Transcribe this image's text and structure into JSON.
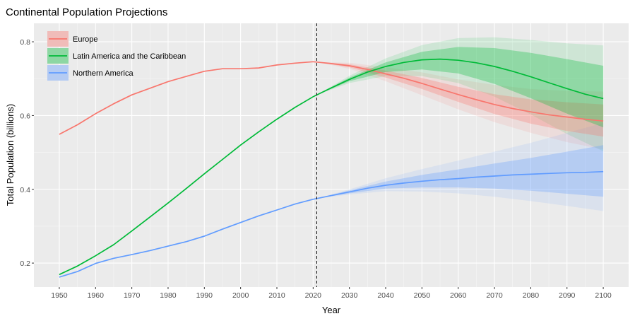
{
  "chart_data": {
    "type": "line",
    "title": "Continental Population Projections",
    "xlabel": "Year",
    "ylabel": "Total Population (billions)",
    "xlim": [
      1943,
      2107
    ],
    "ylim": [
      0.135,
      0.85
    ],
    "x_ticks": [
      1950,
      1960,
      1970,
      1980,
      1990,
      2000,
      2010,
      2020,
      2030,
      2040,
      2050,
      2060,
      2070,
      2080,
      2090,
      2100
    ],
    "y_ticks": [
      0.2,
      0.4,
      0.6,
      0.8
    ],
    "y_tick_labels": [
      "0.2",
      "0.4",
      "0.6",
      "0.8"
    ],
    "grid": true,
    "legend_position": "top-left",
    "reference_line": {
      "x": 2021,
      "style": "dashed"
    },
    "projection_start": 2021,
    "series": [
      {
        "name": "Europe",
        "color": "#F8766D",
        "points": [
          [
            1950,
            0.549
          ],
          [
            1955,
            0.575
          ],
          [
            1960,
            0.605
          ],
          [
            1965,
            0.632
          ],
          [
            1970,
            0.656
          ],
          [
            1975,
            0.674
          ],
          [
            1980,
            0.692
          ],
          [
            1985,
            0.706
          ],
          [
            1990,
            0.72
          ],
          [
            1995,
            0.727
          ],
          [
            2000,
            0.727
          ],
          [
            2005,
            0.729
          ],
          [
            2010,
            0.737
          ],
          [
            2015,
            0.742
          ],
          [
            2020,
            0.746
          ],
          [
            2021,
            0.745
          ],
          [
            2025,
            0.741
          ],
          [
            2030,
            0.735
          ],
          [
            2035,
            0.725
          ],
          [
            2040,
            0.713
          ],
          [
            2045,
            0.701
          ],
          [
            2050,
            0.687
          ],
          [
            2055,
            0.672
          ],
          [
            2060,
            0.657
          ],
          [
            2065,
            0.643
          ],
          [
            2070,
            0.63
          ],
          [
            2075,
            0.619
          ],
          [
            2080,
            0.61
          ],
          [
            2085,
            0.602
          ],
          [
            2090,
            0.596
          ],
          [
            2095,
            0.59
          ],
          [
            2100,
            0.585
          ]
        ],
        "band80": [
          [
            2021,
            0.745,
            0.745
          ],
          [
            2030,
            0.731,
            0.739
          ],
          [
            2040,
            0.703,
            0.722
          ],
          [
            2050,
            0.672,
            0.702
          ],
          [
            2060,
            0.637,
            0.678
          ],
          [
            2070,
            0.604,
            0.658
          ],
          [
            2080,
            0.578,
            0.644
          ],
          [
            2090,
            0.558,
            0.636
          ],
          [
            2100,
            0.543,
            0.63
          ]
        ],
        "band95": [
          [
            2021,
            0.745,
            0.745
          ],
          [
            2030,
            0.727,
            0.743
          ],
          [
            2040,
            0.693,
            0.731
          ],
          [
            2050,
            0.655,
            0.717
          ],
          [
            2060,
            0.617,
            0.698
          ],
          [
            2070,
            0.582,
            0.683
          ],
          [
            2080,
            0.553,
            0.672
          ],
          [
            2090,
            0.528,
            0.667
          ],
          [
            2100,
            0.508,
            0.665
          ]
        ]
      },
      {
        "name": "Latin America and the Caribbean",
        "color": "#00BA38",
        "points": [
          [
            1950,
            0.169
          ],
          [
            1955,
            0.192
          ],
          [
            1960,
            0.22
          ],
          [
            1965,
            0.25
          ],
          [
            1970,
            0.287
          ],
          [
            1975,
            0.325
          ],
          [
            1980,
            0.363
          ],
          [
            1985,
            0.402
          ],
          [
            1990,
            0.442
          ],
          [
            1995,
            0.481
          ],
          [
            2000,
            0.52
          ],
          [
            2005,
            0.556
          ],
          [
            2010,
            0.59
          ],
          [
            2015,
            0.622
          ],
          [
            2020,
            0.651
          ],
          [
            2021,
            0.656
          ],
          [
            2025,
            0.675
          ],
          [
            2030,
            0.698
          ],
          [
            2035,
            0.718
          ],
          [
            2040,
            0.733
          ],
          [
            2045,
            0.744
          ],
          [
            2050,
            0.751
          ],
          [
            2055,
            0.753
          ],
          [
            2060,
            0.75
          ],
          [
            2065,
            0.743
          ],
          [
            2070,
            0.733
          ],
          [
            2075,
            0.72
          ],
          [
            2080,
            0.705
          ],
          [
            2085,
            0.689
          ],
          [
            2090,
            0.673
          ],
          [
            2095,
            0.658
          ],
          [
            2100,
            0.646
          ]
        ],
        "band80": [
          [
            2021,
            0.656,
            0.656
          ],
          [
            2030,
            0.693,
            0.703
          ],
          [
            2040,
            0.718,
            0.744
          ],
          [
            2050,
            0.725,
            0.773
          ],
          [
            2060,
            0.714,
            0.786
          ],
          [
            2070,
            0.686,
            0.783
          ],
          [
            2080,
            0.647,
            0.77
          ],
          [
            2090,
            0.605,
            0.753
          ],
          [
            2100,
            0.568,
            0.735
          ]
        ],
        "band95": [
          [
            2021,
            0.656,
            0.656
          ],
          [
            2030,
            0.688,
            0.708
          ],
          [
            2040,
            0.707,
            0.755
          ],
          [
            2050,
            0.707,
            0.791
          ],
          [
            2060,
            0.688,
            0.81
          ],
          [
            2070,
            0.651,
            0.812
          ],
          [
            2080,
            0.603,
            0.805
          ],
          [
            2090,
            0.55,
            0.796
          ],
          [
            2100,
            0.503,
            0.79
          ]
        ]
      },
      {
        "name": "Northern America",
        "color": "#619CFF",
        "points": [
          [
            1950,
            0.162
          ],
          [
            1955,
            0.177
          ],
          [
            1960,
            0.199
          ],
          [
            1965,
            0.213
          ],
          [
            1970,
            0.223
          ],
          [
            1975,
            0.234
          ],
          [
            1980,
            0.246
          ],
          [
            1985,
            0.258
          ],
          [
            1990,
            0.273
          ],
          [
            1995,
            0.292
          ],
          [
            2000,
            0.31
          ],
          [
            2005,
            0.328
          ],
          [
            2010,
            0.344
          ],
          [
            2015,
            0.36
          ],
          [
            2020,
            0.373
          ],
          [
            2021,
            0.375
          ],
          [
            2025,
            0.383
          ],
          [
            2030,
            0.393
          ],
          [
            2035,
            0.403
          ],
          [
            2040,
            0.411
          ],
          [
            2045,
            0.417
          ],
          [
            2050,
            0.422
          ],
          [
            2055,
            0.426
          ],
          [
            2060,
            0.429
          ],
          [
            2065,
            0.433
          ],
          [
            2070,
            0.436
          ],
          [
            2075,
            0.439
          ],
          [
            2080,
            0.441
          ],
          [
            2085,
            0.443
          ],
          [
            2090,
            0.445
          ],
          [
            2095,
            0.446
          ],
          [
            2100,
            0.448
          ]
        ],
        "band80": [
          [
            2021,
            0.375,
            0.375
          ],
          [
            2030,
            0.389,
            0.397
          ],
          [
            2040,
            0.402,
            0.421
          ],
          [
            2050,
            0.405,
            0.439
          ],
          [
            2060,
            0.405,
            0.454
          ],
          [
            2070,
            0.402,
            0.47
          ],
          [
            2080,
            0.396,
            0.485
          ],
          [
            2090,
            0.388,
            0.502
          ],
          [
            2100,
            0.38,
            0.52
          ]
        ],
        "band95": [
          [
            2021,
            0.375,
            0.375
          ],
          [
            2030,
            0.386,
            0.4
          ],
          [
            2040,
            0.395,
            0.43
          ],
          [
            2050,
            0.394,
            0.455
          ],
          [
            2060,
            0.389,
            0.478
          ],
          [
            2070,
            0.38,
            0.502
          ],
          [
            2080,
            0.368,
            0.526
          ],
          [
            2090,
            0.355,
            0.553
          ],
          [
            2100,
            0.341,
            0.58
          ]
        ]
      }
    ]
  }
}
